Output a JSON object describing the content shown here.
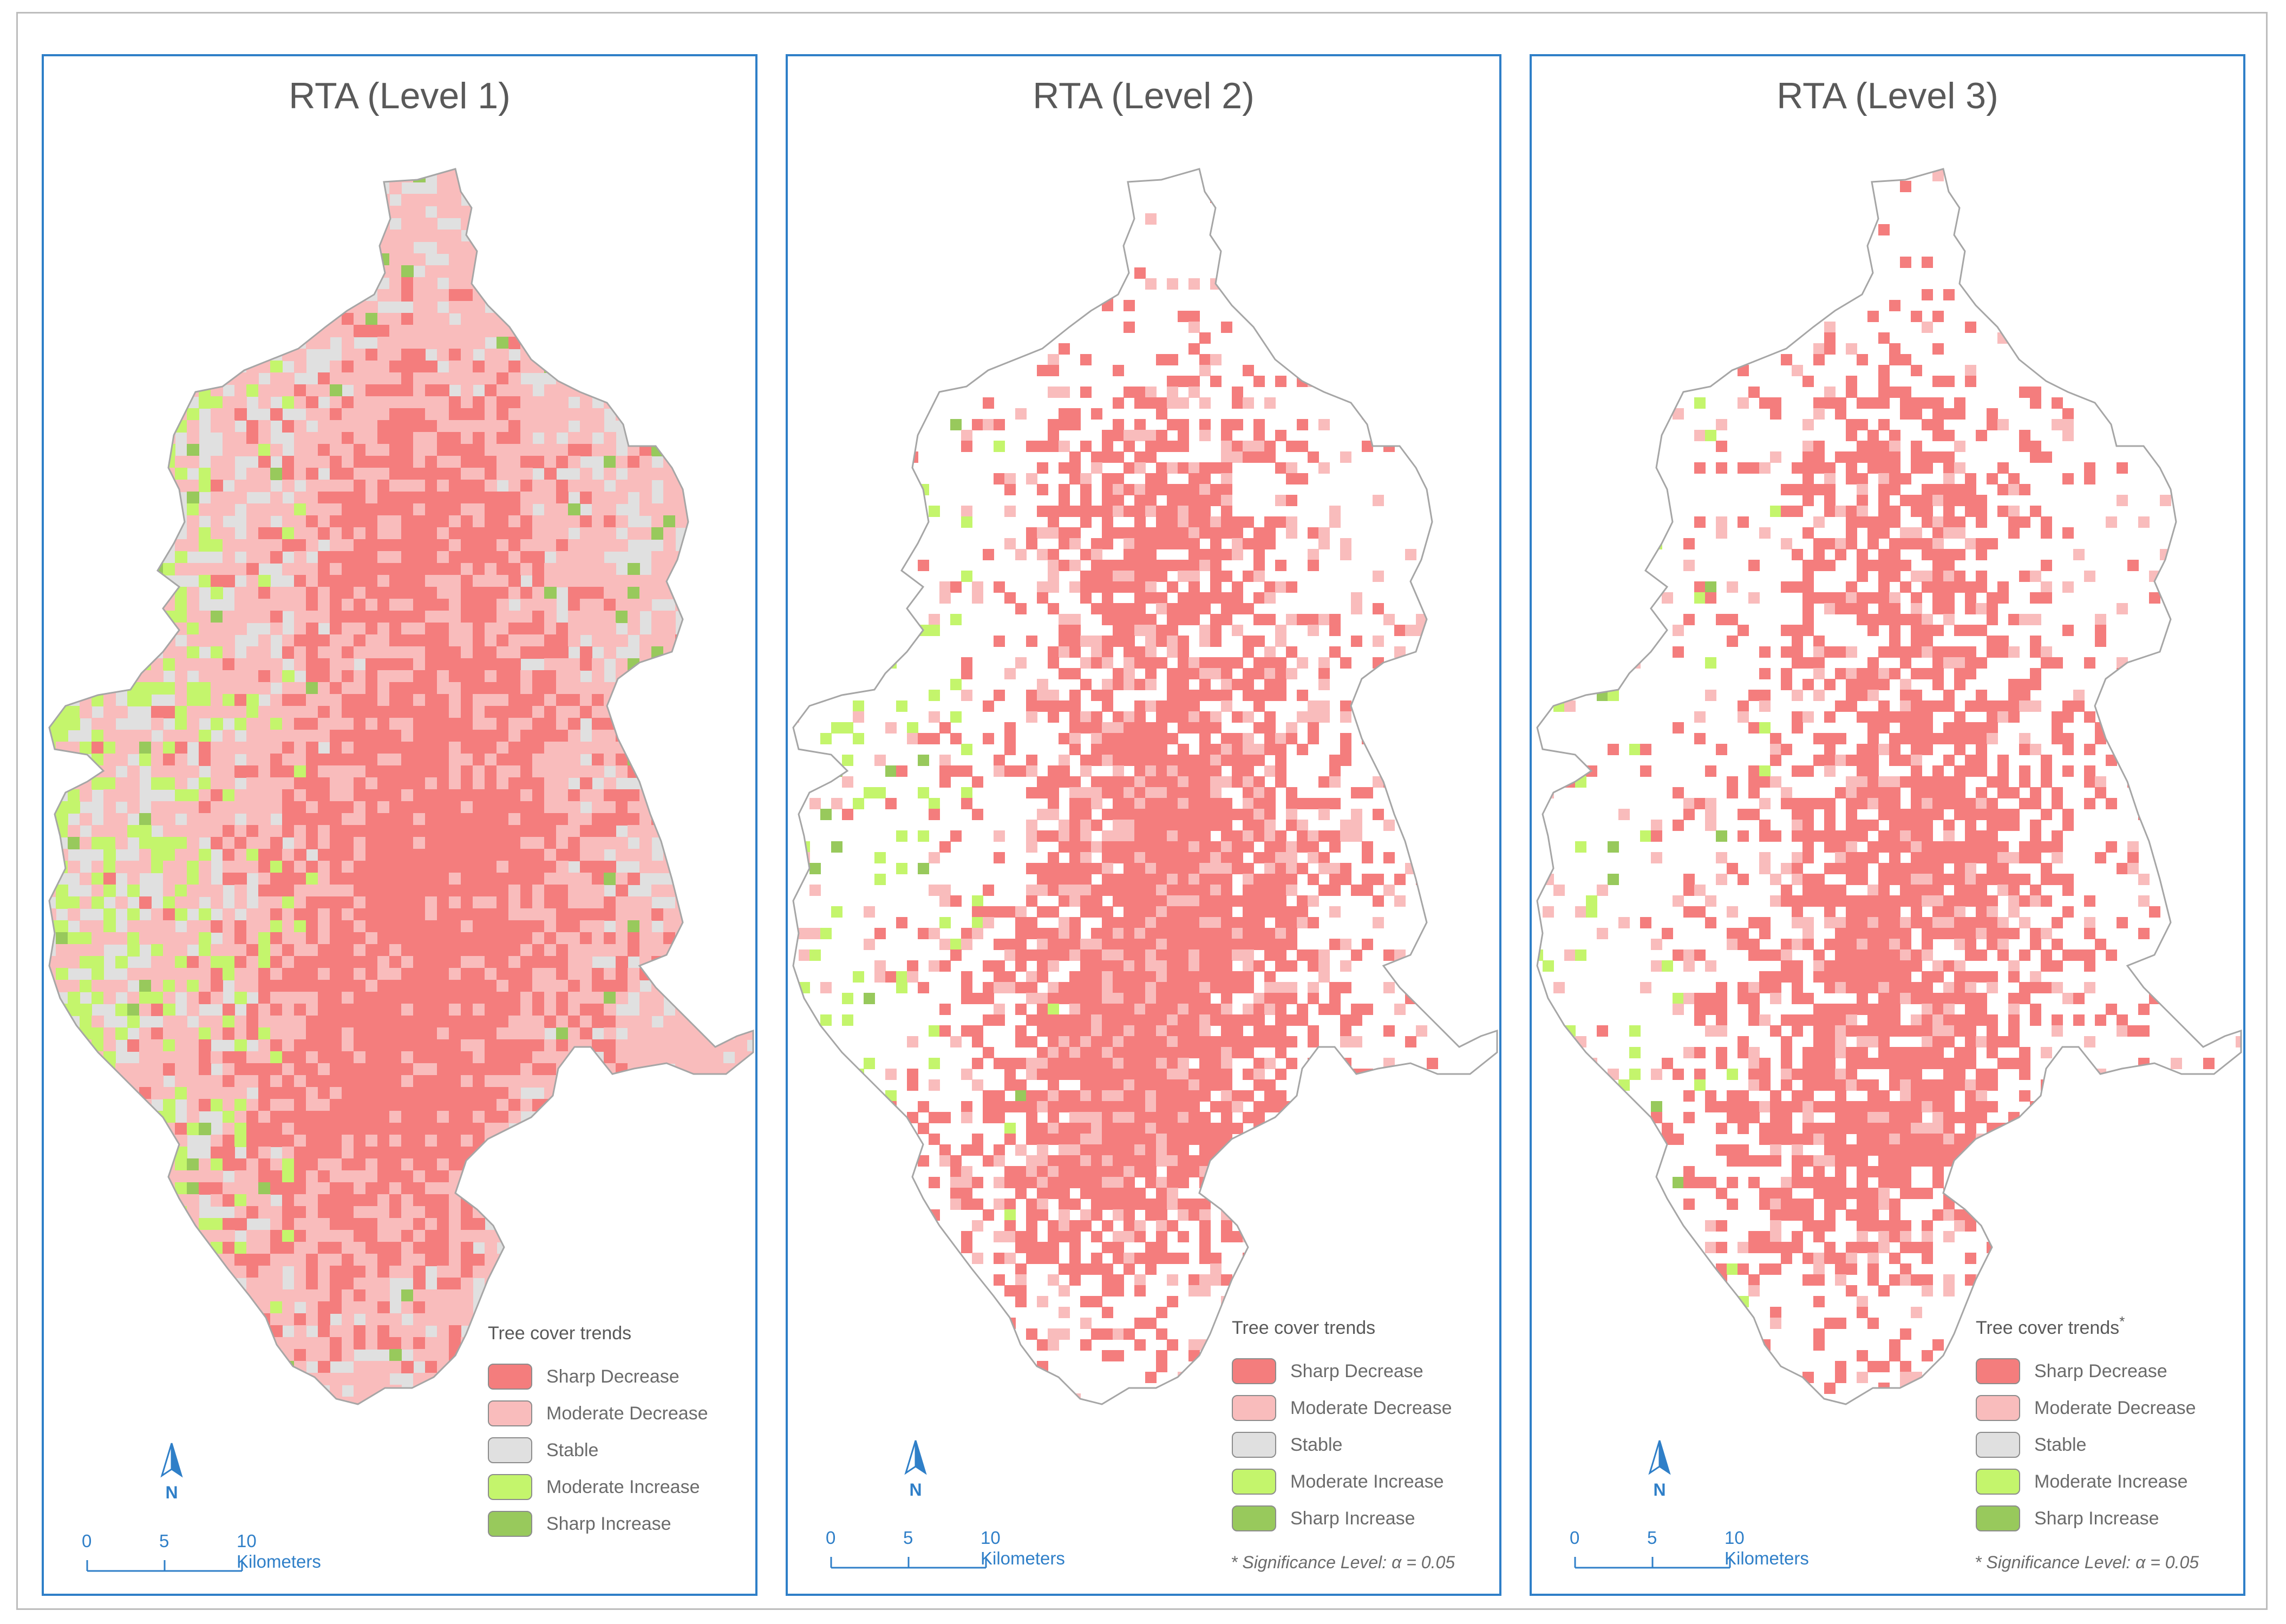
{
  "panels": [
    {
      "title": "RTA (Level 1)",
      "legend_title": "Tree cover trends",
      "legend_asterisk": "",
      "note": ""
    },
    {
      "title": "RTA (Level 2)",
      "legend_title": "Tree cover trends",
      "legend_asterisk": "",
      "note": "*  Significance Level: α = 0.05"
    },
    {
      "title": "RTA (Level 3)",
      "legend_title": "Tree cover trends",
      "legend_asterisk": "*",
      "note": "*  Significance Level: α = 0.05"
    }
  ],
  "legend": [
    {
      "label": "Sharp Decrease",
      "color": "#f47d7d"
    },
    {
      "label": "Moderate Decrease",
      "color": "#f9bcbc"
    },
    {
      "label": "Stable",
      "color": "#e0e0e0"
    },
    {
      "label": "Moderate Increase",
      "color": "#c4f56c"
    },
    {
      "label": "Sharp Increase",
      "color": "#98c95c"
    }
  ],
  "north_arrow": {
    "label": "N"
  },
  "scalebar": {
    "ticks": [
      "0",
      "5",
      "10 Kilometers"
    ],
    "color": "#2f7fc8"
  },
  "map_colors": {
    "outline": "#a6a6a6",
    "sharp_decrease": "#f47d7d",
    "moderate_decrease": "#f9bcbc",
    "stable": "#e0e0e0",
    "moderate_increase": "#c4f56c",
    "sharp_increase": "#98c95c"
  }
}
